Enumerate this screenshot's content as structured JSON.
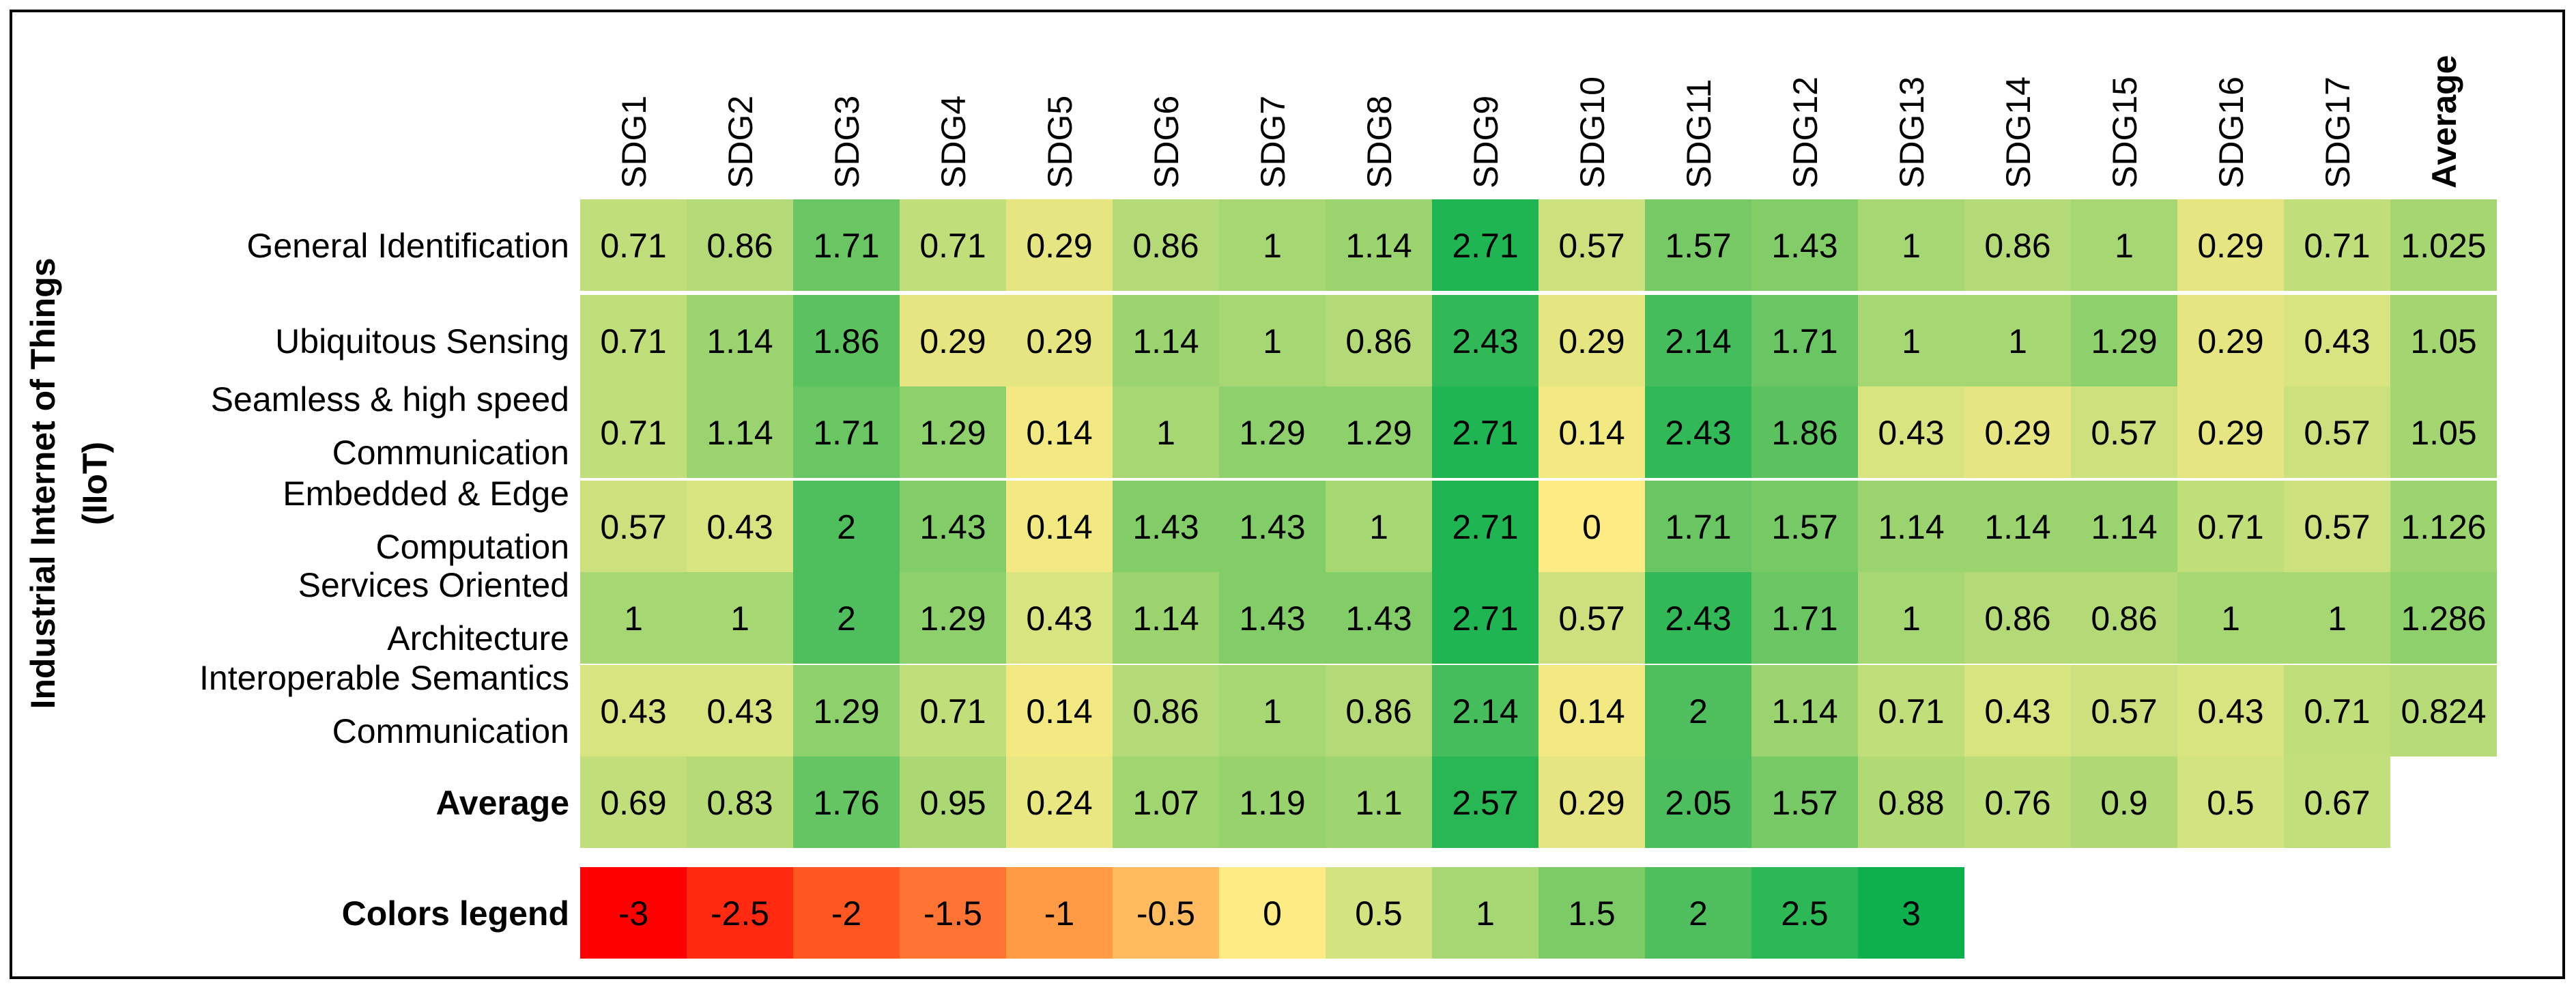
{
  "chart_data": {
    "type": "heatmap",
    "ylabel": "Industrial Internet of Things (IIoT)",
    "columns": [
      "SDG1",
      "SDG2",
      "SDG3",
      "SDG4",
      "SDG5",
      "SDG6",
      "SDG7",
      "SDG8",
      "SDG9",
      "SDG10",
      "SDG11",
      "SDG12",
      "SDG13",
      "SDG14",
      "SDG15",
      "SDG16",
      "SDG17",
      "Average"
    ],
    "rows": [
      {
        "label": "General Identification",
        "values": [
          "0.71",
          "0.86",
          "1.71",
          "0.71",
          "0.29",
          "0.86",
          "1",
          "1.14",
          "2.71",
          "0.57",
          "1.57",
          "1.43",
          "1",
          "0.86",
          "1",
          "0.29",
          "0.71",
          "1.025"
        ]
      },
      {
        "label": "Ubiquitous Sensing",
        "values": [
          "0.71",
          "1.14",
          "1.86",
          "0.29",
          "0.29",
          "1.14",
          "1",
          "0.86",
          "2.43",
          "0.29",
          "2.14",
          "1.71",
          "1",
          "1",
          "1.29",
          "0.29",
          "0.43",
          "1.05"
        ]
      },
      {
        "label": "Seamless & high speed Communication",
        "values": [
          "0.71",
          "1.14",
          "1.71",
          "1.29",
          "0.14",
          "1",
          "1.29",
          "1.29",
          "2.71",
          "0.14",
          "2.43",
          "1.86",
          "0.43",
          "0.29",
          "0.57",
          "0.29",
          "0.57",
          "1.05"
        ]
      },
      {
        "label": "Embedded & Edge Computation",
        "values": [
          "0.57",
          "0.43",
          "2",
          "1.43",
          "0.14",
          "1.43",
          "1.43",
          "1",
          "2.71",
          "0",
          "1.71",
          "1.57",
          "1.14",
          "1.14",
          "1.14",
          "0.71",
          "0.57",
          "1.126"
        ]
      },
      {
        "label": "Services Oriented Architecture",
        "values": [
          "1",
          "1",
          "2",
          "1.29",
          "0.43",
          "1.14",
          "1.43",
          "1.43",
          "2.71",
          "0.57",
          "2.43",
          "1.71",
          "1",
          "0.86",
          "0.86",
          "1",
          "1",
          "1.286"
        ]
      },
      {
        "label": "Interoperable Semantics Communication",
        "values": [
          "0.43",
          "0.43",
          "1.29",
          "0.71",
          "0.14",
          "0.86",
          "1",
          "0.86",
          "2.14",
          "0.14",
          "2",
          "1.14",
          "0.71",
          "0.43",
          "0.57",
          "0.43",
          "0.71",
          "0.824"
        ]
      },
      {
        "label": "Average",
        "values": [
          "0.69",
          "0.83",
          "1.76",
          "0.95",
          "0.24",
          "1.07",
          "1.19",
          "1.1",
          "2.57",
          "0.29",
          "2.05",
          "1.57",
          "0.88",
          "0.76",
          "0.9",
          "0.5",
          "0.67"
        ]
      }
    ],
    "legend": {
      "label": "Colors legend",
      "values": [
        "-3",
        "-2.5",
        "-2",
        "-1.5",
        "-1",
        "-0.5",
        "0",
        "0.5",
        "1",
        "1.5",
        "2",
        "2.5",
        "3"
      ],
      "colors": [
        "#ff0000",
        "#ff2a10",
        "#ff5722",
        "#ff7433",
        "#ff9a45",
        "#ffbb5e",
        "#ffeb84",
        "#d2e37f",
        "#a7d772",
        "#7ccb66",
        "#4fbf5e",
        "#2db856",
        "#0eb04e"
      ]
    },
    "range": [
      -3,
      3
    ],
    "grid": false,
    "legend_position": "bottom"
  }
}
